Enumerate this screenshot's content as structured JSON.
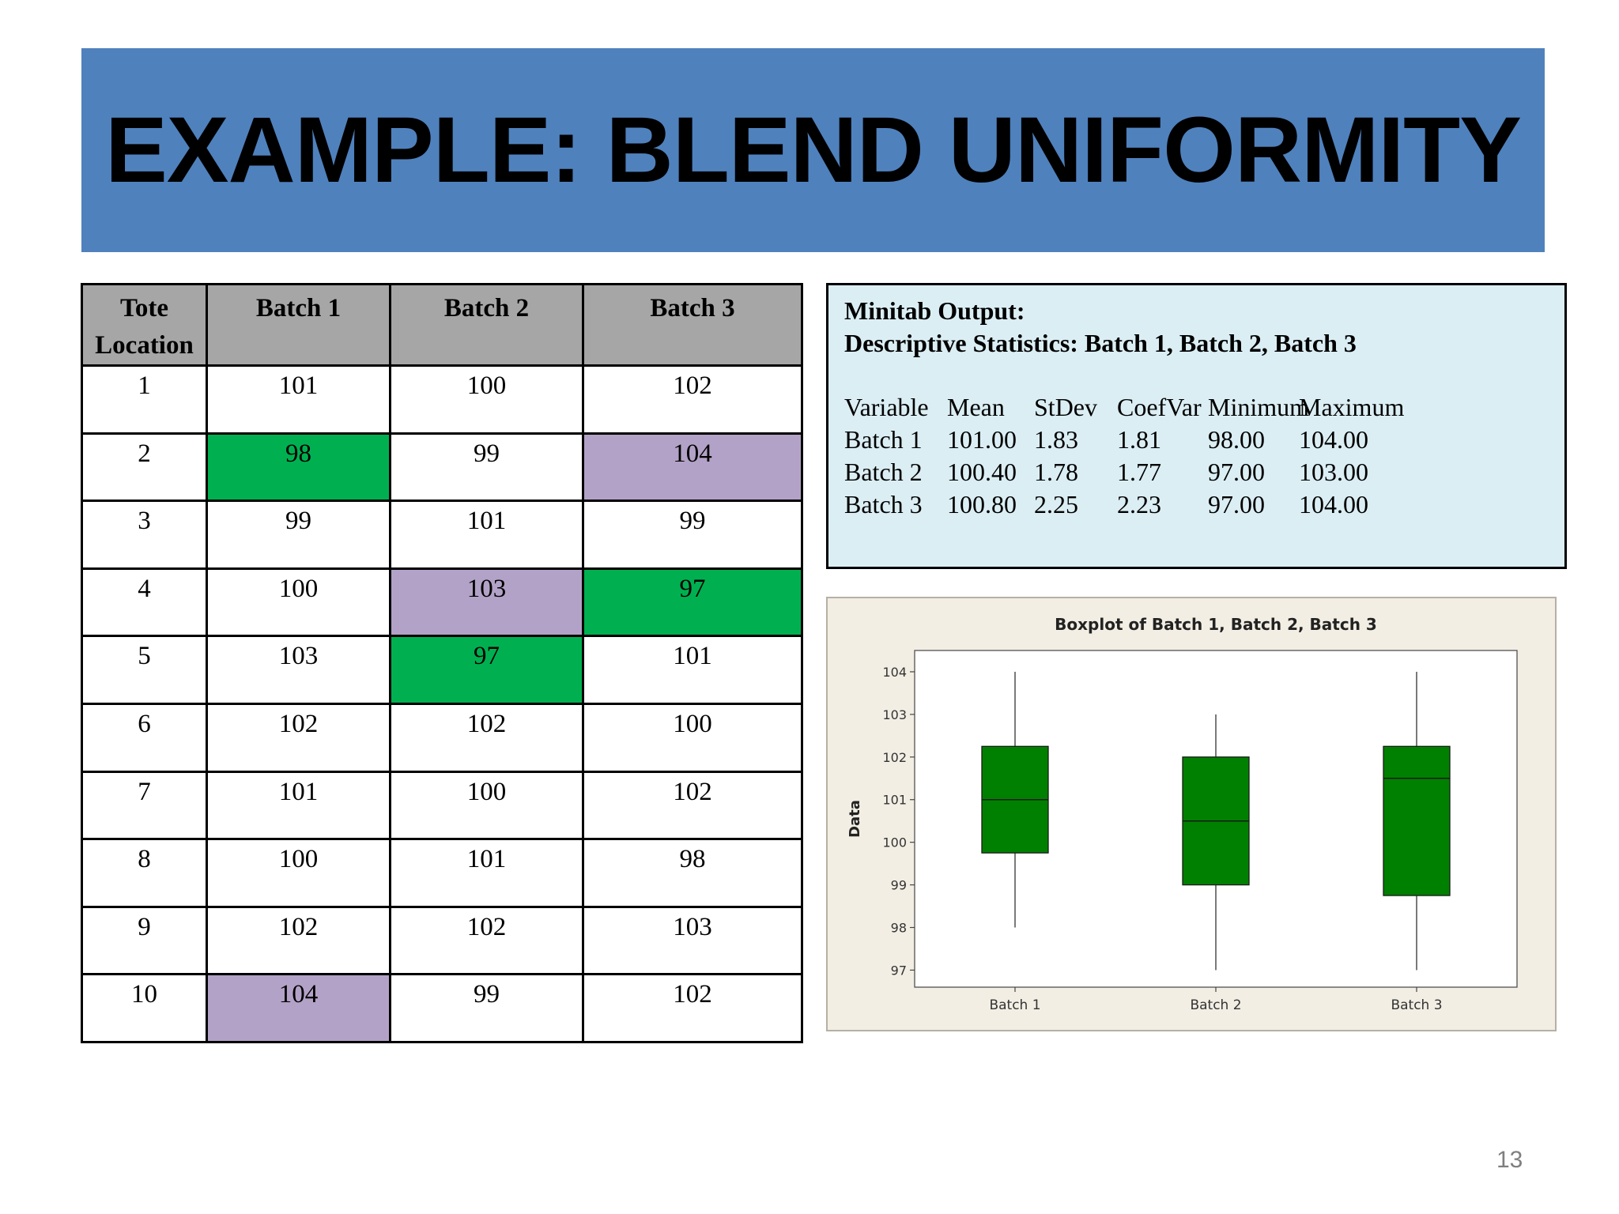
{
  "slide": {
    "title": "EXAMPLE: BLEND UNIFORMITY",
    "page_number": "13"
  },
  "table": {
    "headers": {
      "tote_line1": "Tote",
      "tote_line2": "Location",
      "batch1": "Batch 1",
      "batch2": "Batch 2",
      "batch3": "Batch 3"
    },
    "rows": [
      {
        "loc": "1",
        "b1": "101",
        "b2": "100",
        "b3": "102"
      },
      {
        "loc": "2",
        "b1": "98",
        "b2": "99",
        "b3": "104"
      },
      {
        "loc": "3",
        "b1": "99",
        "b2": "101",
        "b3": "99"
      },
      {
        "loc": "4",
        "b1": "100",
        "b2": "103",
        "b3": "97"
      },
      {
        "loc": "5",
        "b1": "103",
        "b2": "97",
        "b3": "101"
      },
      {
        "loc": "6",
        "b1": "102",
        "b2": "102",
        "b3": "100"
      },
      {
        "loc": "7",
        "b1": "101",
        "b2": "100",
        "b3": "102"
      },
      {
        "loc": "8",
        "b1": "100",
        "b2": "101",
        "b3": "98"
      },
      {
        "loc": "9",
        "b1": "102",
        "b2": "102",
        "b3": "103"
      },
      {
        "loc": "10",
        "b1": "104",
        "b2": "99",
        "b3": "102"
      }
    ],
    "highlight_colors": {
      "min": "#00b050",
      "max": "#b3a2c7"
    }
  },
  "minitab": {
    "heading1": "Minitab Output:",
    "heading2": "Descriptive Statistics: Batch 1, Batch 2, Batch 3",
    "columns": [
      "Variable",
      "Mean",
      "StDev",
      "CoefVar",
      "Minimum",
      "Maximum"
    ],
    "rows": [
      [
        "Batch 1",
        "101.00",
        "1.83",
        "1.81",
        "98.00",
        "104.00"
      ],
      [
        "Batch 2",
        "100.40",
        "1.78",
        "1.77",
        "97.00",
        "103.00"
      ],
      [
        "Batch 3",
        "100.80",
        "2.25",
        "2.23",
        "97.00",
        "104.00"
      ]
    ]
  },
  "chart_data": {
    "type": "boxplot",
    "title": "Boxplot of Batch 1, Batch 2, Batch 3",
    "ylabel": "Data",
    "xlabel": "",
    "ylim": [
      96.6,
      104.5
    ],
    "yticks": [
      97,
      98,
      99,
      100,
      101,
      102,
      103,
      104
    ],
    "categories": [
      "Batch 1",
      "Batch 2",
      "Batch 3"
    ],
    "boxes": [
      {
        "min": 98,
        "q1": 99.75,
        "median": 101,
        "q3": 102.25,
        "max": 104
      },
      {
        "min": 97,
        "q1": 99,
        "median": 100.5,
        "q3": 102,
        "max": 103
      },
      {
        "min": 97,
        "q1": 98.75,
        "median": 101.5,
        "q3": 102.25,
        "max": 104
      }
    ],
    "box_color": "#008000",
    "plot_background": "#ffffff",
    "panel_background": "#f2eee4"
  }
}
